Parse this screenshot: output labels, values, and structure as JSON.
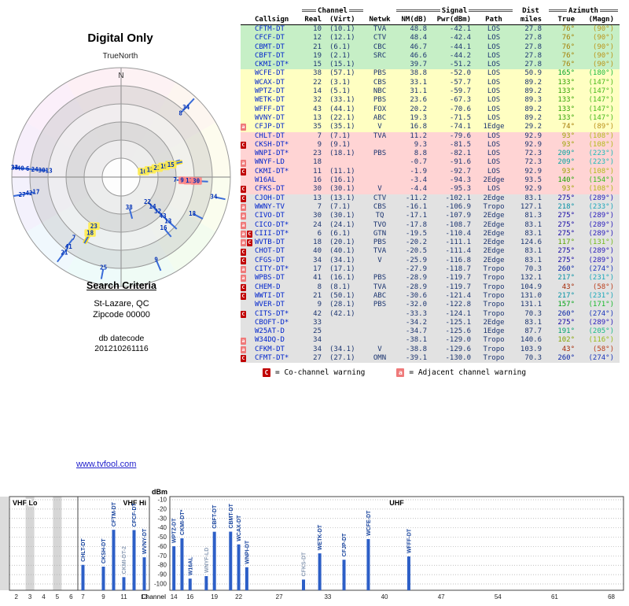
{
  "title": "Digital Only",
  "plot": {
    "true_north_label": "TrueNorth",
    "north_label": "N",
    "compass_colors": [
      "#f9d7dc",
      "#f8e3cf",
      "#f9f6c8",
      "#eef8c9",
      "#d9f6cd",
      "#ccf3dd",
      "#c9f2ee",
      "#cfe8f8",
      "#d8d3f6",
      "#e6ccf4",
      "#f4ccee",
      "#f8cfe0"
    ]
  },
  "search_criteria": {
    "heading": "Search Criteria",
    "location": "St-Lazare, QC",
    "zipcode": "Zipcode 00000",
    "db_label": "db datecode",
    "db_value": "201210261116"
  },
  "link": "www.tvfool.com",
  "table": {
    "group_headers": {
      "channel": "Channel",
      "signal": "Signal",
      "dist": "Dist",
      "azimuth": "Azimuth"
    },
    "col_headers": {
      "callsign": "Callsign",
      "real": "Real",
      "virt": "(Virt)",
      "netwk": "Netwk",
      "nm": "NM(dB)",
      "pwr": "Pwr(dBm)",
      "path": "Path",
      "miles": "miles",
      "true": "True",
      "magn": "(Magn)"
    },
    "band_colors": {
      "green": "#c6efc6",
      "yellow": "#ffffc2",
      "pink": "#ffd4d4",
      "gray": "#e2e2e2"
    },
    "warning_colors": {
      "C": "#c00000",
      "a": "#ef7a7a"
    },
    "legend": {
      "c_symbol": "C",
      "c_text": "= Co-channel warning",
      "a_symbol": "a",
      "a_text": "= Adjacent channel warning"
    },
    "rows": [
      {
        "cs": "CFTM-DT",
        "ch": "10",
        "vi": "(10.1)",
        "nw": "TVA",
        "nm": "48.8",
        "pw": "-42.1",
        "pa": "LOS",
        "mi": "27.8",
        "az": 76,
        "mg": 90,
        "band": "green",
        "w": "",
        "hl": "yellow"
      },
      {
        "cs": "CFCF-DT",
        "ch": "12",
        "vi": "(12.1)",
        "nw": "CTV",
        "nm": "48.4",
        "pw": "-42.4",
        "pa": "LOS",
        "mi": "27.8",
        "az": 76,
        "mg": 90,
        "band": "green",
        "w": "",
        "hl": "yellow"
      },
      {
        "cs": "CBMT-DT",
        "ch": "21",
        "vi": "(6.1)",
        "nw": "CBC",
        "nm": "46.7",
        "pw": "-44.1",
        "pa": "LOS",
        "mi": "27.8",
        "az": 76,
        "mg": 90,
        "band": "green",
        "w": "",
        "hl": "yellow"
      },
      {
        "cs": "CBFT-DT",
        "ch": "19",
        "vi": "(2.1)",
        "nw": "SRC",
        "nm": "46.6",
        "pw": "-44.2",
        "pa": "LOS",
        "mi": "27.8",
        "az": 76,
        "mg": 90,
        "band": "green",
        "w": "",
        "hl": "yellow"
      },
      {
        "cs": "CKMI-DT*",
        "ch": "15",
        "vi": "(15.1)",
        "nw": "",
        "nm": "39.7",
        "pw": "-51.2",
        "pa": "LOS",
        "mi": "27.8",
        "az": 76,
        "mg": 90,
        "band": "green",
        "w": "",
        "hl": "yellow"
      },
      {
        "cs": "WCFE-DT",
        "ch": "38",
        "vi": "(57.1)",
        "nw": "PBS",
        "nm": "38.8",
        "pw": "-52.0",
        "pa": "LOS",
        "mi": "50.9",
        "az": 165,
        "mg": 180,
        "band": "yellow",
        "w": "",
        "hl": ""
      },
      {
        "cs": "WCAX-DT",
        "ch": "22",
        "vi": "(3.1)",
        "nw": "CBS",
        "nm": "33.1",
        "pw": "-57.7",
        "pa": "LOS",
        "mi": "89.2",
        "az": 133,
        "mg": 147,
        "band": "yellow",
        "w": "",
        "hl": ""
      },
      {
        "cs": "WPTZ-DT",
        "ch": "14",
        "vi": "(5.1)",
        "nw": "NBC",
        "nm": "31.1",
        "pw": "-59.7",
        "pa": "LOS",
        "mi": "89.2",
        "az": 133,
        "mg": 147,
        "band": "yellow",
        "w": "",
        "hl": ""
      },
      {
        "cs": "WETK-DT",
        "ch": "32",
        "vi": "(33.1)",
        "nw": "PBS",
        "nm": "23.6",
        "pw": "-67.3",
        "pa": "LOS",
        "mi": "89.3",
        "az": 133,
        "mg": 147,
        "band": "yellow",
        "w": "",
        "hl": ""
      },
      {
        "cs": "WFFF-DT",
        "ch": "43",
        "vi": "(44.1)",
        "nw": "FOX",
        "nm": "20.2",
        "pw": "-70.6",
        "pa": "LOS",
        "mi": "89.2",
        "az": 133,
        "mg": 147,
        "band": "yellow",
        "w": "",
        "hl": ""
      },
      {
        "cs": "WVNY-DT",
        "ch": "13",
        "vi": "(22.1)",
        "nw": "ABC",
        "nm": "19.3",
        "pw": "-71.5",
        "pa": "LOS",
        "mi": "89.2",
        "az": 133,
        "mg": 147,
        "band": "yellow",
        "w": "",
        "hl": ""
      },
      {
        "cs": "CFJP-DT",
        "ch": "35",
        "vi": "(35.1)",
        "nw": "V",
        "nm": "16.8",
        "pw": "-74.1",
        "pa": "1Edge",
        "mi": "29.2",
        "az": 74,
        "mg": 89,
        "band": "yellow",
        "w": "a",
        "hl": ""
      },
      {
        "cs": "CHLT-DT",
        "ch": "7",
        "vi": "(7.1)",
        "nw": "TVA",
        "nm": "11.2",
        "pw": "-79.6",
        "pa": "LOS",
        "mi": "92.9",
        "az": 93,
        "mg": 108,
        "band": "pink",
        "w": "",
        "hl": ""
      },
      {
        "cs": "CKSH-DT*",
        "ch": "9",
        "vi": "(9.1)",
        "nw": "",
        "nm": "9.3",
        "pw": "-81.5",
        "pa": "LOS",
        "mi": "92.9",
        "az": 93,
        "mg": 108,
        "band": "pink",
        "w": "C",
        "hl": "red"
      },
      {
        "cs": "WNPI-DT*",
        "ch": "23",
        "vi": "(18.1)",
        "nw": "PBS",
        "nm": "8.8",
        "pw": "-82.1",
        "pa": "LOS",
        "mi": "72.3",
        "az": 209,
        "mg": 223,
        "band": "pink",
        "w": "",
        "hl": "yellow"
      },
      {
        "cs": "WNYF-LD",
        "ch": "18",
        "vi": "",
        "nw": "",
        "nm": "-0.7",
        "pw": "-91.6",
        "pa": "LOS",
        "mi": "72.3",
        "az": 209,
        "mg": 223,
        "band": "pink",
        "w": "a",
        "hl": "yellow"
      },
      {
        "cs": "CKMI-DT*",
        "ch": "11",
        "vi": "(11.1)",
        "nw": "",
        "nm": "-1.9",
        "pw": "-92.7",
        "pa": "LOS",
        "mi": "92.9",
        "az": 93,
        "mg": 108,
        "band": "pink",
        "w": "C",
        "hl": "red"
      },
      {
        "cs": "W16AL",
        "ch": "16",
        "vi": "(16.1)",
        "nw": "",
        "nm": "-3.4",
        "pw": "-94.3",
        "pa": "2Edge",
        "mi": "93.5",
        "az": 140,
        "mg": 154,
        "band": "pink",
        "w": "",
        "hl": ""
      },
      {
        "cs": "CFKS-DT",
        "ch": "30",
        "vi": "(30.1)",
        "nw": "V",
        "nm": "-4.4",
        "pw": "-95.3",
        "pa": "LOS",
        "mi": "92.9",
        "az": 93,
        "mg": 108,
        "band": "pink",
        "w": "C",
        "hl": "red"
      },
      {
        "cs": "CJOH-DT",
        "ch": "13",
        "vi": "(13.1)",
        "nw": "CTV",
        "nm": "-11.2",
        "pw": "-102.1",
        "pa": "2Edge",
        "mi": "83.1",
        "az": 275,
        "mg": 289,
        "band": "gray",
        "w": "C",
        "hl": ""
      },
      {
        "cs": "WWNY-TV",
        "ch": "7",
        "vi": "(7.1)",
        "nw": "CBS",
        "nm": "-16.1",
        "pw": "-106.9",
        "pa": "Tropo",
        "mi": "127.1",
        "az": 218,
        "mg": 233,
        "band": "gray",
        "w": "a",
        "hl": ""
      },
      {
        "cs": "CIVO-DT",
        "ch": "30",
        "vi": "(30.1)",
        "nw": "TQ",
        "nm": "-17.1",
        "pw": "-107.9",
        "pa": "2Edge",
        "mi": "81.3",
        "az": 275,
        "mg": 289,
        "band": "gray",
        "w": "a",
        "hl": ""
      },
      {
        "cs": "CICO-DT*",
        "ch": "24",
        "vi": "(24.1)",
        "nw": "TVO",
        "nm": "-17.8",
        "pw": "-108.7",
        "pa": "2Edge",
        "mi": "83.1",
        "az": 275,
        "mg": 289,
        "band": "gray",
        "w": "a",
        "hl": ""
      },
      {
        "cs": "CIII-DT*",
        "ch": "6",
        "vi": "(6.1)",
        "nw": "GTN",
        "nm": "-19.5",
        "pw": "-110.4",
        "pa": "2Edge",
        "mi": "83.1",
        "az": 275,
        "mg": 289,
        "band": "gray",
        "w": "aC",
        "hl": ""
      },
      {
        "cs": "WVTB-DT",
        "ch": "18",
        "vi": "(20.1)",
        "nw": "PBS",
        "nm": "-20.2",
        "pw": "-111.1",
        "pa": "2Edge",
        "mi": "124.6",
        "az": 117,
        "mg": 131,
        "band": "gray",
        "w": "aC",
        "hl": ""
      },
      {
        "cs": "CHOT-DT",
        "ch": "40",
        "vi": "(40.1)",
        "nw": "TVA",
        "nm": "-20.5",
        "pw": "-111.4",
        "pa": "2Edge",
        "mi": "83.1",
        "az": 275,
        "mg": 289,
        "band": "gray",
        "w": "C",
        "hl": ""
      },
      {
        "cs": "CFGS-DT",
        "ch": "34",
        "vi": "(34.1)",
        "nw": "V",
        "nm": "-25.9",
        "pw": "-116.8",
        "pa": "2Edge",
        "mi": "83.1",
        "az": 275,
        "mg": 289,
        "band": "gray",
        "w": "C",
        "hl": ""
      },
      {
        "cs": "CITY-DT*",
        "ch": "17",
        "vi": "(17.1)",
        "nw": "",
        "nm": "-27.9",
        "pw": "-118.7",
        "pa": "Tropo",
        "mi": "70.3",
        "az": 260,
        "mg": 274,
        "band": "gray",
        "w": "a",
        "hl": ""
      },
      {
        "cs": "WPBS-DT",
        "ch": "41",
        "vi": "(16.1)",
        "nw": "PBS",
        "nm": "-28.9",
        "pw": "-119.7",
        "pa": "Tropo",
        "mi": "132.1",
        "az": 217,
        "mg": 231,
        "band": "gray",
        "w": "a",
        "hl": ""
      },
      {
        "cs": "CHEM-D",
        "ch": "8",
        "vi": "(8.1)",
        "nw": "TVA",
        "nm": "-28.9",
        "pw": "-119.7",
        "pa": "Tropo",
        "mi": "104.9",
        "az": 43,
        "mg": 58,
        "band": "gray",
        "w": "C",
        "hl": ""
      },
      {
        "cs": "WWTI-DT",
        "ch": "21",
        "vi": "(50.1)",
        "nw": "ABC",
        "nm": "-30.6",
        "pw": "-121.4",
        "pa": "Tropo",
        "mi": "131.0",
        "az": 217,
        "mg": 231,
        "band": "gray",
        "w": "C",
        "hl": ""
      },
      {
        "cs": "WVER-DT",
        "ch": "9",
        "vi": "(28.1)",
        "nw": "PBS",
        "nm": "-32.0",
        "pw": "-122.8",
        "pa": "Tropo",
        "mi": "131.1",
        "az": 157,
        "mg": 171,
        "band": "gray",
        "w": "",
        "hl": ""
      },
      {
        "cs": "CITS-DT*",
        "ch": "42",
        "vi": "(42.1)",
        "nw": "",
        "nm": "-33.3",
        "pw": "-124.1",
        "pa": "Tropo",
        "mi": "70.3",
        "az": 260,
        "mg": 274,
        "band": "gray",
        "w": "C",
        "hl": ""
      },
      {
        "cs": "CBOFT-D*",
        "ch": "33",
        "vi": "",
        "nw": "",
        "nm": "-34.2",
        "pw": "-125.1",
        "pa": "2Edge",
        "mi": "83.1",
        "az": 275,
        "mg": 289,
        "band": "gray",
        "w": "",
        "hl": ""
      },
      {
        "cs": "W25AT-D",
        "ch": "25",
        "vi": "",
        "nw": "",
        "nm": "-34.7",
        "pw": "-125.6",
        "pa": "1Edge",
        "mi": "87.7",
        "az": 191,
        "mg": 205,
        "band": "gray",
        "w": "",
        "hl": ""
      },
      {
        "cs": "W34DQ-D",
        "ch": "34",
        "vi": "",
        "nw": "",
        "nm": "-38.1",
        "pw": "-129.0",
        "pa": "Tropo",
        "mi": "140.6",
        "az": 102,
        "mg": 116,
        "band": "gray",
        "w": "a",
        "hl": ""
      },
      {
        "cs": "CFKM-DT",
        "ch": "34",
        "vi": "(34.1)",
        "nw": "V",
        "nm": "-38.8",
        "pw": "-129.6",
        "pa": "Tropo",
        "mi": "103.9",
        "az": 43,
        "mg": 58,
        "band": "gray",
        "w": "a",
        "hl": ""
      },
      {
        "cs": "CFMT-DT*",
        "ch": "27",
        "vi": "(27.1)",
        "nw": "OMN",
        "nm": "-39.1",
        "pw": "-130.0",
        "pa": "Tropo",
        "mi": "70.3",
        "az": 260,
        "mg": 274,
        "band": "gray",
        "w": "C",
        "hl": ""
      }
    ]
  },
  "chart_data": [
    {
      "type": "scatter",
      "subtype": "polar-radar",
      "title": "Digital Only",
      "orientation_label": "TrueNorth",
      "north_label": "N",
      "rings": 6,
      "points_from": "table.rows: angle = az (true azimuth), radius = signal strength (stronger toward center), point label = real channel"
    },
    {
      "type": "bar",
      "ylabel": "dBm",
      "xlabel": "Channel",
      "ylim": [
        -100,
        -10
      ],
      "y_ticks": [
        -10,
        -20,
        -30,
        -40,
        -50,
        -60,
        -70,
        -80,
        -90,
        -100
      ],
      "x_ticks": [
        2,
        3,
        4,
        5,
        6,
        7,
        9,
        11,
        13,
        14,
        16,
        19,
        22,
        27,
        33,
        40,
        47,
        54,
        61,
        68
      ],
      "bands": [
        {
          "label": "VHF Lo",
          "ch_min": 2,
          "ch_max": 6
        },
        {
          "label": "VHF Hi",
          "ch_min": 7,
          "ch_max": 13
        },
        {
          "label": "UHF",
          "ch_min": 14,
          "ch_max": 69
        }
      ],
      "gray_columns": [
        3,
        5
      ],
      "bars": [
        {
          "label": "CHLT-DT",
          "channel": 7,
          "dbm": -79.6,
          "dim": false
        },
        {
          "label": "CKSH-DT",
          "channel": 9,
          "dbm": -81.5,
          "dim": false
        },
        {
          "label": "CFTM-DT",
          "channel": 10,
          "dbm": -42.1,
          "dim": false
        },
        {
          "label": "CKMI-DT-2",
          "channel": 11,
          "dbm": -92.7,
          "dim": true
        },
        {
          "label": "CFCF-DT",
          "channel": 12,
          "dbm": -42.4,
          "dim": false
        },
        {
          "label": "WVNY-DT",
          "channel": 13,
          "dbm": -71.5,
          "dim": false
        },
        {
          "label": "WPTZ-DT",
          "channel": 14,
          "dbm": -59.7,
          "dim": false
        },
        {
          "label": "CKMI-DT*",
          "channel": 15,
          "dbm": -51.2,
          "dim": false
        },
        {
          "label": "W16AL",
          "channel": 16,
          "dbm": -94.3,
          "dim": false
        },
        {
          "label": "WNYF-LD",
          "channel": 18,
          "dbm": -91.6,
          "dim": true
        },
        {
          "label": "CBFT-DT",
          "channel": 19,
          "dbm": -44.2,
          "dim": false
        },
        {
          "label": "CBMT-DT",
          "channel": 21,
          "dbm": -44.1,
          "dim": false
        },
        {
          "label": "WCAX-DT",
          "channel": 22,
          "dbm": -57.7,
          "dim": false
        },
        {
          "label": "WNPI-DT",
          "channel": 23,
          "dbm": -82.1,
          "dim": false
        },
        {
          "label": "CFKS-DT",
          "channel": 30,
          "dbm": -95.3,
          "dim": true
        },
        {
          "label": "WETK-DT",
          "channel": 32,
          "dbm": -67.3,
          "dim": false
        },
        {
          "label": "CFJP-DT",
          "channel": 35,
          "dbm": -74.1,
          "dim": false
        },
        {
          "label": "WCFE-DT",
          "channel": 38,
          "dbm": -52.0,
          "dim": false
        },
        {
          "label": "WFFF-DT",
          "channel": 43,
          "dbm": -70.6,
          "dim": false
        }
      ]
    }
  ]
}
